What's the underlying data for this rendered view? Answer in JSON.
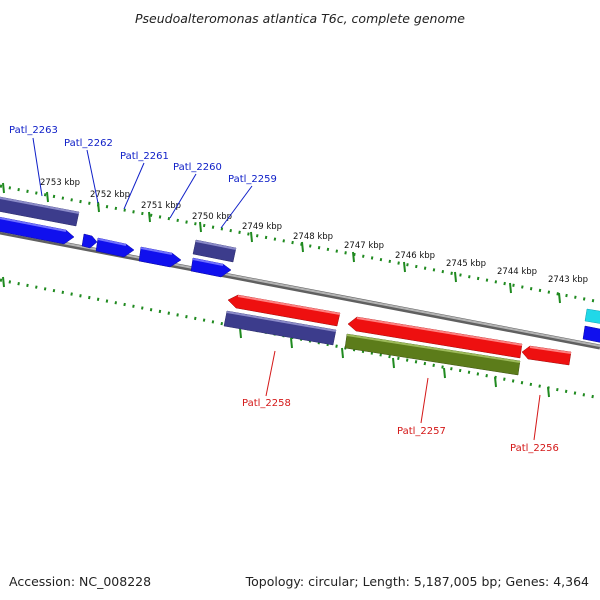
{
  "title": "Pseudoalteromonas atlantica T6c, complete genome",
  "footer": {
    "accession": "Accession: NC_008228",
    "summary": "Topology: circular; Length: 5,187,005 bp; Genes: 4,364"
  },
  "colors": {
    "backbone": "#8a8a8a",
    "ticks": "#1f8a1f",
    "label_top": "#1020c8",
    "label_bottom": "#d41818",
    "gene_blue": "#1010ee",
    "gene_navy": "#3c3c8c",
    "gene_red": "#ee1010",
    "gene_olive": "#5c7c1a",
    "gene_cyan": "#20d8e8"
  },
  "ruler_labels": [
    "2753 kbp",
    "2752 kbp",
    "2751 kbp",
    "2750 kbp",
    "2749 kbp",
    "2748 kbp",
    "2747 kbp",
    "2746 kbp",
    "2745 kbp",
    "2744 kbp",
    "2743 kbp"
  ],
  "genes_top": [
    "Patl_2263",
    "Patl_2262",
    "Patl_2261",
    "Patl_2260",
    "Patl_2259"
  ],
  "genes_bottom": [
    "Patl_2258",
    "Patl_2257",
    "Patl_2256"
  ]
}
